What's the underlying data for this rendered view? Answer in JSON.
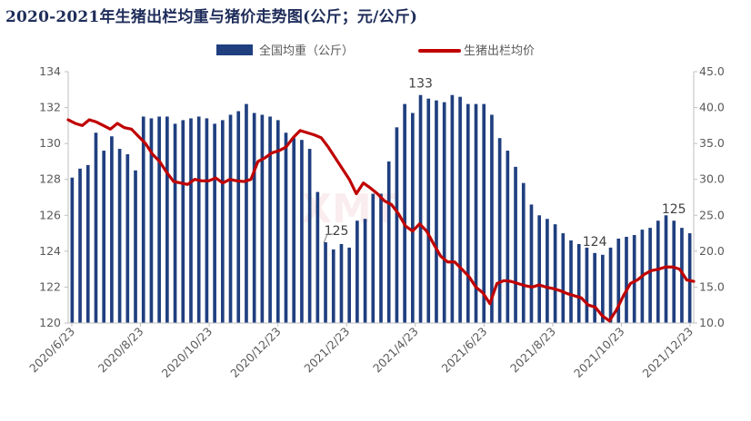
{
  "title": "2020-2021年生猪出栏均重与猪价走势图(公斤；元/公斤)",
  "watermark": "XMT",
  "chart_data": {
    "type": "bar",
    "title": "2020-2021年生猪出栏均重与猪价走势图(公斤；元/公斤)",
    "legend_position": "top-center",
    "grid": false,
    "x_tick_labels": [
      "2020/6/23",
      "2020/8/23",
      "2020/10/23",
      "2020/12/23",
      "2021/2/23",
      "2021/4/23",
      "2021/6/23",
      "2021/8/23",
      "2021/10/23",
      "2021/12/23"
    ],
    "y_left": {
      "min": 120,
      "max": 134,
      "step": 2,
      "labels": [
        "120",
        "122",
        "124",
        "126",
        "128",
        "130",
        "132",
        "134"
      ]
    },
    "y_right": {
      "min": 10,
      "max": 45,
      "step": 5,
      "labels": [
        "10.0",
        "15.0",
        "20.0",
        "25.0",
        "30.0",
        "35.0",
        "40.0",
        "45.0"
      ]
    },
    "series": [
      {
        "name": "全国均重（公斤）",
        "type": "bar",
        "axis": "left",
        "color": "#1f3f7f",
        "values": [
          128.1,
          128.6,
          128.8,
          130.6,
          129.6,
          130.4,
          129.7,
          129.4,
          128.5,
          131.5,
          131.4,
          131.5,
          131.5,
          131.1,
          131.3,
          131.4,
          131.5,
          131.4,
          131.1,
          131.3,
          131.6,
          131.8,
          132.2,
          131.7,
          131.6,
          131.5,
          131.3,
          130.6,
          130.3,
          130.2,
          129.7,
          127.3,
          124.5,
          124.1,
          124.4,
          124.2,
          125.7,
          125.8,
          127.2,
          127.2,
          129.0,
          130.9,
          132.2,
          131.7,
          132.7,
          132.5,
          132.4,
          132.3,
          132.7,
          132.6,
          132.2,
          132.2,
          132.2,
          131.6,
          130.3,
          129.6,
          128.7,
          127.8,
          126.6,
          126.0,
          125.8,
          125.5,
          125.0,
          124.6,
          124.4,
          124.2,
          123.9,
          123.8,
          124.2,
          124.7,
          124.8,
          124.9,
          125.2,
          125.3,
          125.7,
          126.0,
          125.7,
          125.3,
          125.0
        ]
      },
      {
        "name": "生猪出栏均价",
        "type": "line",
        "axis": "right",
        "color": "#c00000",
        "values": [
          38.3,
          37.8,
          37.5,
          38.3,
          38.0,
          37.5,
          37.0,
          37.8,
          37.2,
          37.0,
          36.0,
          35.0,
          33.5,
          32.5,
          31.0,
          29.7,
          29.5,
          29.3,
          30.0,
          29.8,
          29.8,
          30.2,
          29.5,
          30.0,
          29.8,
          29.7,
          30.0,
          32.5,
          33.0,
          33.7,
          34.0,
          34.5,
          35.8,
          36.8,
          36.5,
          36.2,
          35.8,
          34.5,
          33.0,
          31.5,
          30.0,
          28.0,
          29.5,
          28.8,
          28.0,
          27.0,
          26.5,
          25.2,
          23.5,
          22.8,
          23.8,
          22.8,
          21.0,
          19.3,
          18.5,
          18.5,
          17.5,
          16.5,
          15.0,
          14.2,
          12.7,
          15.5,
          15.9,
          15.8,
          15.5,
          15.2,
          15.0,
          15.3,
          15.0,
          14.8,
          14.5,
          14.1,
          13.8,
          13.5,
          12.5,
          12.2,
          11.0,
          10.3,
          11.8,
          13.8,
          15.5,
          16.0,
          16.8,
          17.3,
          17.5,
          17.8,
          17.8,
          17.5,
          16.0,
          15.8
        ]
      }
    ],
    "annotations": [
      "133",
      "125",
      "124",
      "125"
    ]
  }
}
